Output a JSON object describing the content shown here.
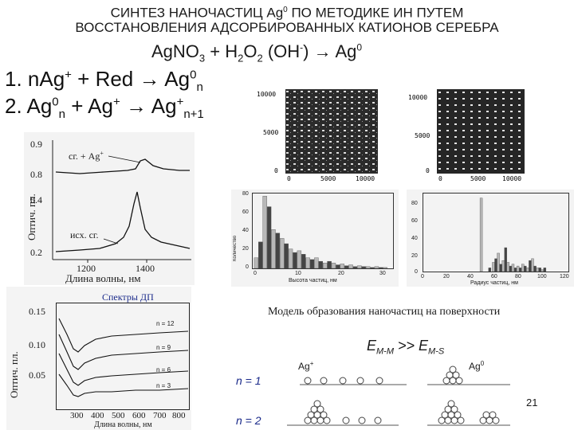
{
  "heading": {
    "line1": "СИНТЕЗ НАНОЧАСТИЦ Ag",
    "line1_sup": "0",
    "line1_tail": " ПО МЕТОДИКЕ ИН ПУТЕМ",
    "line2": "ВОССТАНОВЛЕНИЯ АДСОРБИРОВАННЫХ КАТИОНОВ СЕРЕБРА",
    "reaction": {
      "a": "AgNO",
      "a_sub": "3",
      "b": " + H",
      "b_sub": "2",
      "c": "O",
      "c_sub": "2",
      "d": " (OH",
      "d_sup": "-",
      "e": ")  →  Ag",
      "e_sup": "0"
    }
  },
  "equations": {
    "eq1": {
      "a": "1. nAg",
      "a_sup": "+",
      "b": " + Red  →  Ag",
      "b_sup": "0",
      "b_sub": "n"
    },
    "eq2": {
      "a": "2. Ag",
      "a_sup": "0",
      "a_sub": "n",
      "b": " + Ag",
      "b_sup": "+",
      "c": "  →  Ag",
      "c_sup": "+",
      "c_sub": "n+1"
    }
  },
  "spectrum_top": {
    "ylabel": "Оптич. пл.",
    "yticks": [
      "0.9",
      "0.8",
      "0.4",
      "0.2"
    ],
    "xticks": [
      "1200",
      "1400"
    ],
    "xlabel": "Длина волны, нм",
    "label_upper": "сг. + Ag",
    "label_upper_sup": "+",
    "label_lower": "исх. сг."
  },
  "afm_left": {
    "yticks": [
      "10000",
      "5000",
      "0"
    ],
    "xticks": [
      "0",
      "5000",
      "10000"
    ]
  },
  "afm_right": {
    "yticks": [
      "10000",
      "5000",
      "0"
    ],
    "xticks": [
      "0",
      "5000",
      "10000"
    ]
  },
  "hist_left": {
    "yticks": [
      "80",
      "60",
      "40",
      "20",
      "0"
    ],
    "xticks": [
      "0",
      "10",
      "20",
      "30"
    ],
    "ylabel": "Количество",
    "xlabel": "Высота частиц, нм",
    "chart_data": {
      "type": "bar",
      "x": [
        1,
        2,
        3,
        4,
        5,
        6,
        7,
        8,
        9,
        10,
        11,
        12,
        13,
        14,
        15,
        16,
        17,
        18,
        19,
        20,
        21,
        22,
        23,
        24,
        25,
        26,
        27,
        28,
        29,
        30,
        31
      ],
      "values": [
        12,
        30,
        82,
        70,
        44,
        40,
        34,
        28,
        22,
        18,
        20,
        16,
        12,
        10,
        12,
        8,
        6,
        8,
        6,
        4,
        5,
        3,
        4,
        2,
        3,
        2,
        2,
        1,
        2,
        1,
        1
      ],
      "ylim": [
        0,
        85
      ],
      "xlim": [
        0,
        33
      ]
    }
  },
  "hist_right": {
    "yticks": [
      "80",
      "60",
      "40",
      "20",
      "0"
    ],
    "xticks": [
      "0",
      "20",
      "40",
      "60",
      "80",
      "100",
      "120"
    ],
    "xlabel": "Радиус частиц, нм",
    "chart_data": {
      "type": "bar",
      "x": [
        48,
        55,
        58,
        60,
        62,
        64,
        66,
        68,
        70,
        72,
        74,
        76,
        78,
        80,
        82,
        84,
        86,
        88,
        90,
        92,
        94,
        96,
        98,
        100
      ],
      "values": [
        80,
        4,
        10,
        14,
        20,
        8,
        12,
        26,
        10,
        6,
        8,
        4,
        6,
        4,
        8,
        6,
        4,
        12,
        14,
        6,
        4,
        4,
        2,
        4
      ],
      "ylim": [
        0,
        85
      ],
      "xlim": [
        0,
        120
      ]
    }
  },
  "spectrum_bottom": {
    "title": "Спектры ДП",
    "ylabel": "Оптич. пл.",
    "yticks": [
      "0.15",
      "0.10",
      "0.05"
    ],
    "xticks": [
      "300",
      "400",
      "500",
      "600",
      "700",
      "800"
    ],
    "xlabel": "Длина волны, нм",
    "curve_labels": [
      "n = 12",
      "n = 9",
      "n = 6",
      "n = 3"
    ]
  },
  "model": {
    "caption": "Модель образования наночастиц на поверхности",
    "energy": {
      "a": "E",
      "a_sub": "M-M",
      "b": " >> E",
      "b_sub": "M-S"
    },
    "ag_plus": "Ag",
    "ag_plus_sup": "+",
    "ag_zero": "Ag",
    "ag_zero_sup": "0",
    "row1": "n = 1",
    "row2": "n = 2"
  },
  "page_number": "21",
  "colors": {
    "accent_text": "#1a2a8a",
    "curve": "#111111",
    "hist_dark": "#444444",
    "hist_light": "#b8b8b8"
  }
}
